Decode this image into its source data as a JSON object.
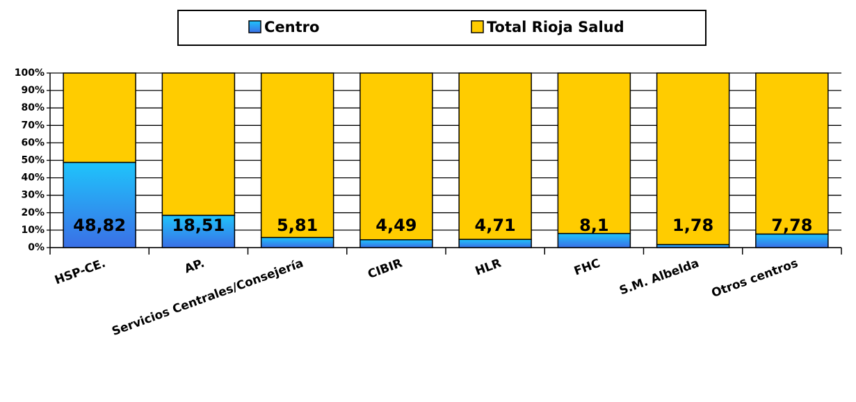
{
  "chart_data": {
    "type": "stacked_bar_100",
    "categories": [
      "HSP-CE.",
      "AP.",
      "Servicios Centrales/Consejería",
      "CIBIR",
      "HLR",
      "FHC",
      "S.M. Albelda",
      "Otros centros"
    ],
    "series": [
      {
        "name": "Centro",
        "color": "#1fc4fb",
        "values": [
          48.82,
          18.51,
          5.81,
          4.49,
          4.71,
          8.1,
          1.78,
          7.78
        ],
        "value_labels": [
          "48,82",
          "18,51",
          "5,81",
          "4,49",
          "4,71",
          "8,1",
          "1,78",
          "7,78"
        ]
      },
      {
        "name": "Total Rioja Salud",
        "color": "#ffcc00",
        "values": [
          51.18,
          81.49,
          94.19,
          95.51,
          95.29,
          91.9,
          98.22,
          92.22
        ]
      }
    ],
    "ylim": [
      0,
      100
    ],
    "yticks": [
      {
        "value": 0,
        "label": "0%"
      },
      {
        "value": 10,
        "label": "10%"
      },
      {
        "value": 20,
        "label": "20%"
      },
      {
        "value": 30,
        "label": "30%"
      },
      {
        "value": 40,
        "label": "40%"
      },
      {
        "value": 50,
        "label": "50%"
      },
      {
        "value": 60,
        "label": "60%"
      },
      {
        "value": 70,
        "label": "70%"
      },
      {
        "value": 80,
        "label": "80%"
      },
      {
        "value": 90,
        "label": "90%"
      },
      {
        "value": 100,
        "label": "100%"
      }
    ],
    "grid": true
  }
}
